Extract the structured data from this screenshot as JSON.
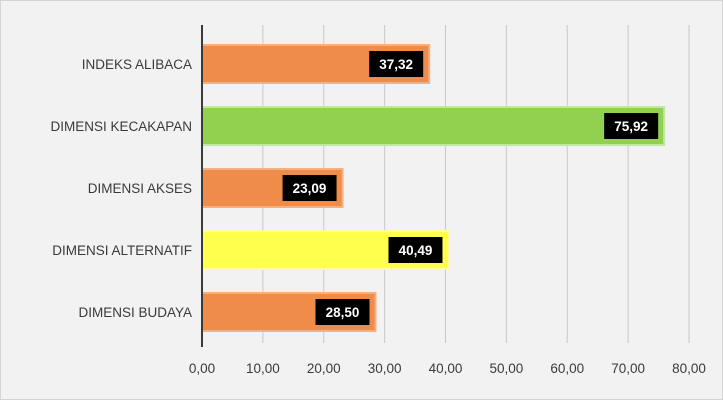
{
  "chart_data": {
    "type": "bar",
    "orientation": "horizontal",
    "categories": [
      "INDEKS ALIBACA",
      "DIMENSI KECAKAPAN",
      "DIMENSI AKSES",
      "DIMENSI ALTERNATIF",
      "DIMENSI BUDAYA"
    ],
    "values": [
      37.32,
      75.92,
      23.09,
      40.49,
      28.5
    ],
    "value_labels": [
      "37,32",
      "75,92",
      "23,09",
      "40,49",
      "28,50"
    ],
    "bar_colors": [
      "#f08c4a",
      "#92d050",
      "#f08c4a",
      "#ffff4d",
      "#f08c4a"
    ],
    "bar_border_colors": [
      "#f5b080",
      "#c4e6a3",
      "#f5b080",
      "#ffff99",
      "#f5b080"
    ],
    "xlim": [
      0,
      80
    ],
    "x_ticks": [
      0,
      10,
      20,
      30,
      40,
      50,
      60,
      70,
      80
    ],
    "x_tick_labels": [
      "0,00",
      "10,00",
      "20,00",
      "30,00",
      "40,00",
      "50,00",
      "60,00",
      "70,00",
      "80,00"
    ],
    "grid": true,
    "title": "",
    "xlabel": "",
    "ylabel": "",
    "colors": {
      "background": "#f2f2f2",
      "gridline": "#c8c8c8",
      "value_label_box": "#000000",
      "value_label_text": "#ffffff",
      "text": "#3a3a3a"
    }
  }
}
